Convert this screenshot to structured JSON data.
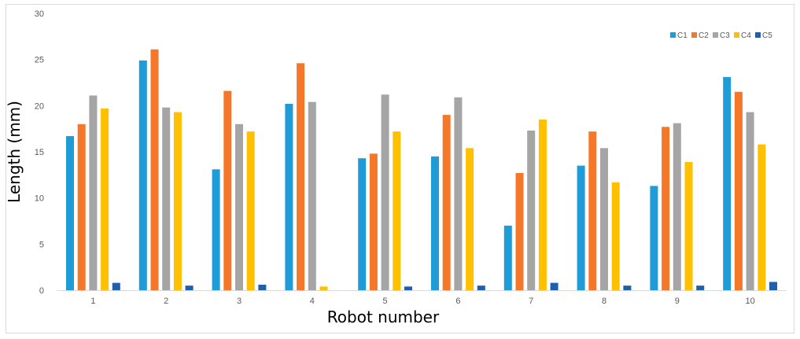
{
  "chart_data": {
    "type": "bar",
    "title": "",
    "xlabel": "Robot number",
    "ylabel": "Length (mm)",
    "categories": [
      "1",
      "2",
      "3",
      "4",
      "5",
      "6",
      "7",
      "8",
      "9",
      "10"
    ],
    "ylim": [
      0,
      30
    ],
    "yticks": [
      "0",
      "5",
      "10",
      "15",
      "20",
      "25",
      "30"
    ],
    "grid": false,
    "legend_position": "top-right",
    "series": [
      {
        "name": "C1",
        "color": "#1f9bd7",
        "values": [
          16.7,
          24.9,
          13.1,
          20.2,
          14.3,
          14.5,
          7.0,
          13.5,
          11.3,
          23.1
        ]
      },
      {
        "name": "C2",
        "color": "#f5782a",
        "values": [
          18.0,
          26.1,
          21.6,
          24.6,
          14.8,
          19.0,
          12.7,
          17.2,
          17.7,
          21.5
        ]
      },
      {
        "name": "C3",
        "color": "#a5a5a5",
        "values": [
          21.1,
          19.8,
          18.0,
          20.4,
          21.2,
          20.9,
          17.3,
          15.4,
          18.1,
          19.3
        ]
      },
      {
        "name": "C4",
        "color": "#ffc000",
        "values": [
          19.7,
          19.3,
          17.2,
          0.4,
          17.2,
          15.4,
          18.5,
          11.7,
          13.9,
          15.8
        ]
      },
      {
        "name": "C5",
        "color": "#1f5fae",
        "values": [
          0.8,
          0.5,
          0.6,
          0.0,
          0.4,
          0.5,
          0.8,
          0.5,
          0.5,
          0.9
        ]
      }
    ]
  }
}
